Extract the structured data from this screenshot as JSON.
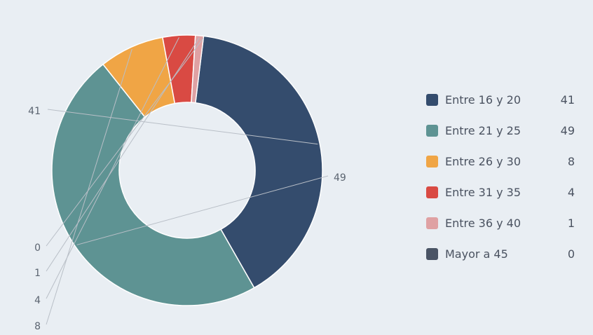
{
  "chart_data": {
    "type": "pie",
    "categories": [
      "Entre 16 y 20",
      "Entre 21 y 25",
      "Entre 26 y 30",
      "Entre 31 y 35",
      "Entre 36 y 40",
      "Mayor a 45"
    ],
    "values": [
      41,
      49,
      8,
      4,
      1,
      0
    ],
    "colors": [
      "#344c6d",
      "#5e9393",
      "#f0a545",
      "#d94a43",
      "#dfa1a3",
      "#4a5465"
    ],
    "labels": [
      "41",
      "49",
      "8",
      "4",
      "1",
      "0"
    ],
    "legend_position": "right",
    "donut": true
  },
  "legend": [
    {
      "label": "Entre 16 y 20",
      "value": "41"
    },
    {
      "label": "Entre 21 y 25",
      "value": "49"
    },
    {
      "label": "Entre 26 y 30",
      "value": "8"
    },
    {
      "label": "Entre 31 y 35",
      "value": "4"
    },
    {
      "label": "Entre 36 y 40",
      "value": "1"
    },
    {
      "label": "Mayor a 45",
      "value": "0"
    }
  ]
}
